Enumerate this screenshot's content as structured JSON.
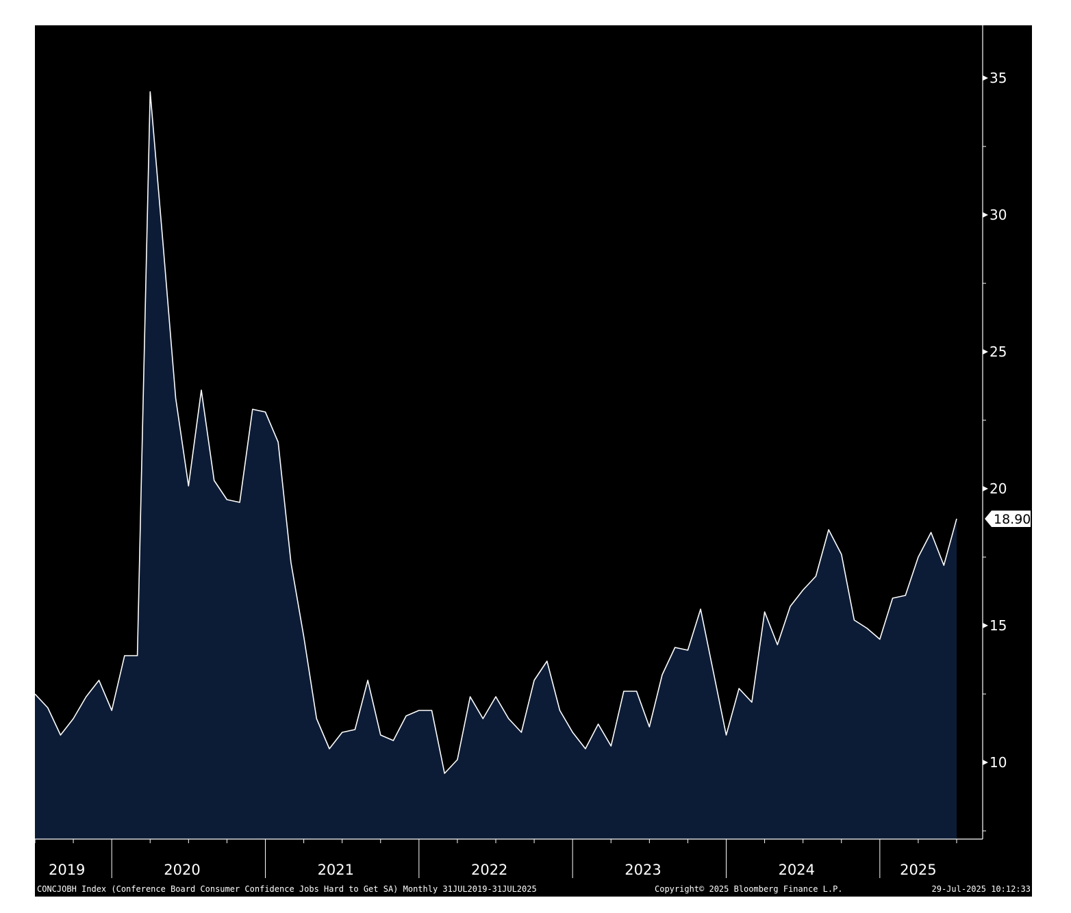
{
  "chart_data": {
    "type": "area",
    "title": "",
    "xlabel": "",
    "ylabel": "",
    "x_start": "2019-07",
    "x_end": "2025-07",
    "x_ticks": [
      "2019",
      "2020",
      "2021",
      "2022",
      "2023",
      "2024",
      "2025"
    ],
    "yticks": [
      10,
      15,
      20,
      25,
      30,
      35
    ],
    "ylim": [
      7.5,
      37
    ],
    "y_axis_side": "right",
    "grid": false,
    "last_value_label": "18.90",
    "series": [
      {
        "values": [
          12.5,
          12.0,
          11.0,
          11.6,
          12.4,
          13.0,
          11.9,
          13.9,
          13.9,
          34.5,
          29.0,
          23.3,
          20.1,
          23.6,
          20.3,
          19.6,
          19.5,
          22.9,
          22.8,
          21.7,
          17.3,
          14.6,
          11.6,
          10.5,
          11.1,
          11.2,
          13.0,
          11.0,
          10.8,
          11.7,
          11.9,
          11.9,
          9.6,
          10.1,
          12.4,
          11.6,
          12.4,
          11.6,
          11.1,
          13.0,
          13.7,
          11.9,
          11.1,
          10.5,
          11.4,
          10.6,
          12.6,
          12.6,
          11.3,
          13.2,
          14.2,
          14.1,
          15.6,
          13.3,
          11.0,
          12.7,
          12.2,
          15.5,
          14.3,
          15.7,
          16.3,
          16.8,
          18.5,
          17.6,
          15.2,
          14.9,
          14.5,
          16.0,
          16.1,
          17.5,
          18.4,
          17.2,
          18.9
        ]
      }
    ],
    "colors": {
      "background": "#000000",
      "area_fill": "#0d1c36",
      "line": "#ffffff",
      "axis": "#ffffff",
      "label_box": "#ffffff",
      "label_text": "#000000"
    }
  },
  "footer": {
    "left": "CONCJOBH Index (Conference Board Consumer Confidence Jobs Hard to Get SA)  Monthly 31JUL2019-31JUL2025",
    "middle": "Copyright© 2025 Bloomberg Finance L.P.",
    "right": "29-Jul-2025 10:12:33"
  }
}
